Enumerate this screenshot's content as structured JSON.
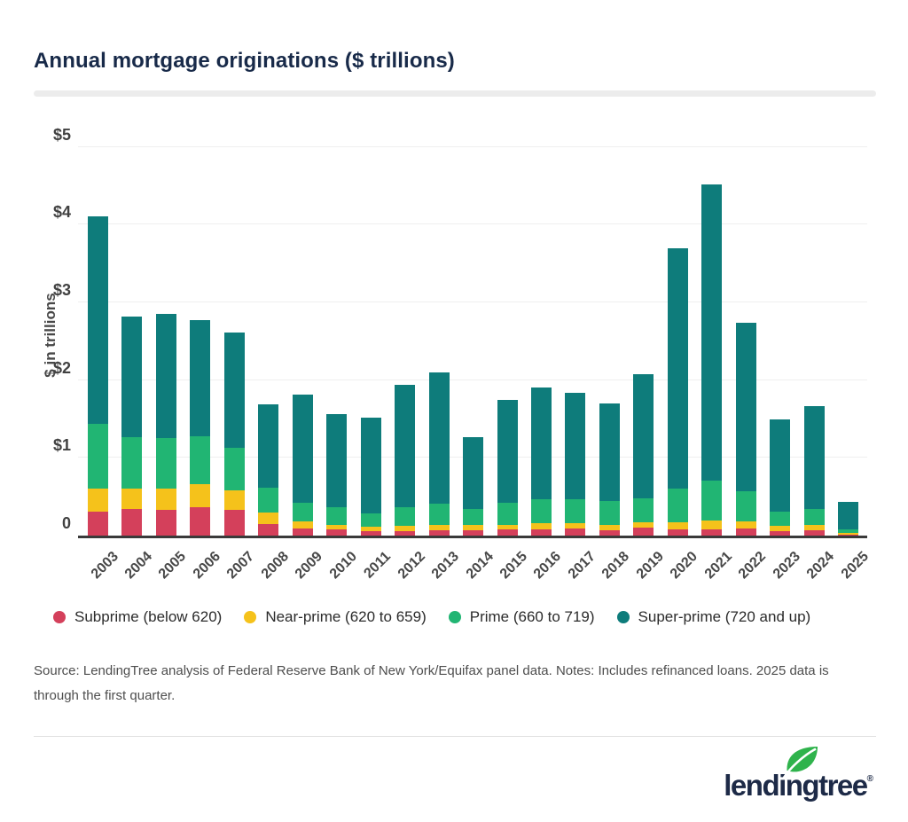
{
  "page": {
    "title": "Annual mortgage originations ($ trillions)"
  },
  "chart_data": {
    "type": "bar",
    "stacked": true,
    "title": "Annual mortgage originations ($ trillions)",
    "xlabel": "",
    "ylabel": "$ in trillions",
    "ylim": [
      0,
      5
    ],
    "grid": true,
    "legend_position": "bottom",
    "ytick_labels": [
      "0",
      "$1",
      "$2",
      "$3",
      "$4",
      "$5"
    ],
    "categories": [
      "2003",
      "2004",
      "2005",
      "2006",
      "2007",
      "2008",
      "2009",
      "2010",
      "2011",
      "2012",
      "2013",
      "2014",
      "2015",
      "2016",
      "2017",
      "2018",
      "2019",
      "2020",
      "2021",
      "2022",
      "2023",
      "2024",
      "2025"
    ],
    "series": [
      {
        "name": "Subprime (below 620)",
        "color": "#d4405b",
        "values": [
          0.31,
          0.34,
          0.33,
          0.37,
          0.33,
          0.15,
          0.09,
          0.08,
          0.06,
          0.06,
          0.07,
          0.07,
          0.08,
          0.08,
          0.09,
          0.07,
          0.1,
          0.08,
          0.08,
          0.09,
          0.06,
          0.07,
          0.01
        ]
      },
      {
        "name": "Near-prime (620 to 659)",
        "color": "#f5c21b",
        "values": [
          0.29,
          0.26,
          0.28,
          0.29,
          0.25,
          0.15,
          0.09,
          0.06,
          0.06,
          0.07,
          0.07,
          0.07,
          0.06,
          0.08,
          0.07,
          0.07,
          0.07,
          0.09,
          0.11,
          0.09,
          0.07,
          0.07,
          0.02
        ]
      },
      {
        "name": "Prime (660 to 719)",
        "color": "#21b573",
        "values": [
          0.84,
          0.67,
          0.65,
          0.62,
          0.55,
          0.32,
          0.24,
          0.22,
          0.17,
          0.23,
          0.27,
          0.2,
          0.28,
          0.31,
          0.31,
          0.31,
          0.31,
          0.43,
          0.52,
          0.39,
          0.18,
          0.2,
          0.045
        ]
      },
      {
        "name": "Super-prime (720 and up)",
        "color": "#0e7c7b",
        "values": [
          2.66,
          1.55,
          1.59,
          1.49,
          1.48,
          1.07,
          1.39,
          1.2,
          1.23,
          1.58,
          1.69,
          0.93,
          1.32,
          1.43,
          1.37,
          1.25,
          1.6,
          3.1,
          3.81,
          2.17,
          1.18,
          1.33,
          0.355
        ]
      }
    ],
    "annual_totals": [
      4.1,
      2.82,
      2.85,
      2.77,
      2.61,
      1.69,
      1.81,
      1.56,
      1.52,
      1.94,
      2.1,
      1.27,
      1.74,
      1.9,
      1.84,
      1.7,
      2.08,
      3.7,
      4.52,
      2.74,
      1.49,
      1.67,
      0.43
    ]
  },
  "source": {
    "text": "Source: LendingTree analysis of Federal Reserve Bank of New York/Equifax panel data. Notes: Includes refinanced loans. 2025 data is through the first quarter."
  },
  "footer": {
    "logo_text": "lendingtree",
    "registered_mark": "®",
    "leaf_color": "#2fb34c",
    "logo_navy": "#1d2a47"
  }
}
